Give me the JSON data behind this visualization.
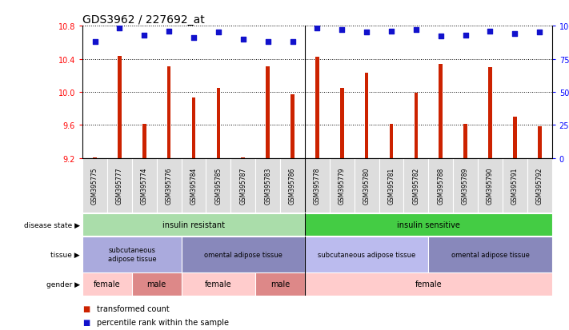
{
  "title": "GDS3962 / 227692_at",
  "samples": [
    "GSM395775",
    "GSM395777",
    "GSM395774",
    "GSM395776",
    "GSM395784",
    "GSM395785",
    "GSM395787",
    "GSM395783",
    "GSM395786",
    "GSM395778",
    "GSM395779",
    "GSM395780",
    "GSM395781",
    "GSM395782",
    "GSM395788",
    "GSM395789",
    "GSM395790",
    "GSM395791",
    "GSM395792"
  ],
  "bar_values": [
    9.21,
    10.43,
    9.61,
    10.31,
    9.93,
    10.05,
    9.21,
    10.31,
    9.97,
    10.42,
    10.05,
    10.23,
    9.61,
    9.99,
    10.34,
    9.61,
    10.3,
    9.7,
    9.58
  ],
  "percentile_values": [
    88,
    98,
    93,
    96,
    91,
    95,
    90,
    88,
    88,
    98,
    97,
    95,
    96,
    97,
    92,
    93,
    96,
    94,
    95
  ],
  "ylim_left": [
    9.2,
    10.8
  ],
  "yticks_left": [
    9.2,
    9.6,
    10.0,
    10.4,
    10.8
  ],
  "yticks_right": [
    0,
    25,
    50,
    75,
    100
  ],
  "bar_color": "#cc2200",
  "dot_color": "#1111cc",
  "title_fontsize": 10,
  "sep_index": 8.5,
  "disease_state_groups": [
    {
      "label": "insulin resistant",
      "start": 0,
      "end": 9,
      "color": "#aaddaa"
    },
    {
      "label": "insulin sensitive",
      "start": 9,
      "end": 19,
      "color": "#44cc44"
    }
  ],
  "tissue_groups": [
    {
      "label": "subcutaneous\nadipose tissue",
      "start": 0,
      "end": 4,
      "color": "#aaaadd"
    },
    {
      "label": "omental adipose tissue",
      "start": 4,
      "end": 9,
      "color": "#8888bb"
    },
    {
      "label": "subcutaneous adipose tissue",
      "start": 9,
      "end": 14,
      "color": "#bbbbee"
    },
    {
      "label": "omental adipose tissue",
      "start": 14,
      "end": 19,
      "color": "#8888bb"
    }
  ],
  "gender_groups": [
    {
      "label": "female",
      "start": 0,
      "end": 2,
      "color": "#ffcccc"
    },
    {
      "label": "male",
      "start": 2,
      "end": 4,
      "color": "#dd8888"
    },
    {
      "label": "female",
      "start": 4,
      "end": 7,
      "color": "#ffcccc"
    },
    {
      "label": "male",
      "start": 7,
      "end": 9,
      "color": "#dd8888"
    },
    {
      "label": "female",
      "start": 9,
      "end": 19,
      "color": "#ffcccc"
    }
  ],
  "row_labels": [
    "disease state",
    "tissue",
    "gender"
  ],
  "legend_red_label": "transformed count",
  "legend_blue_label": "percentile rank within the sample"
}
